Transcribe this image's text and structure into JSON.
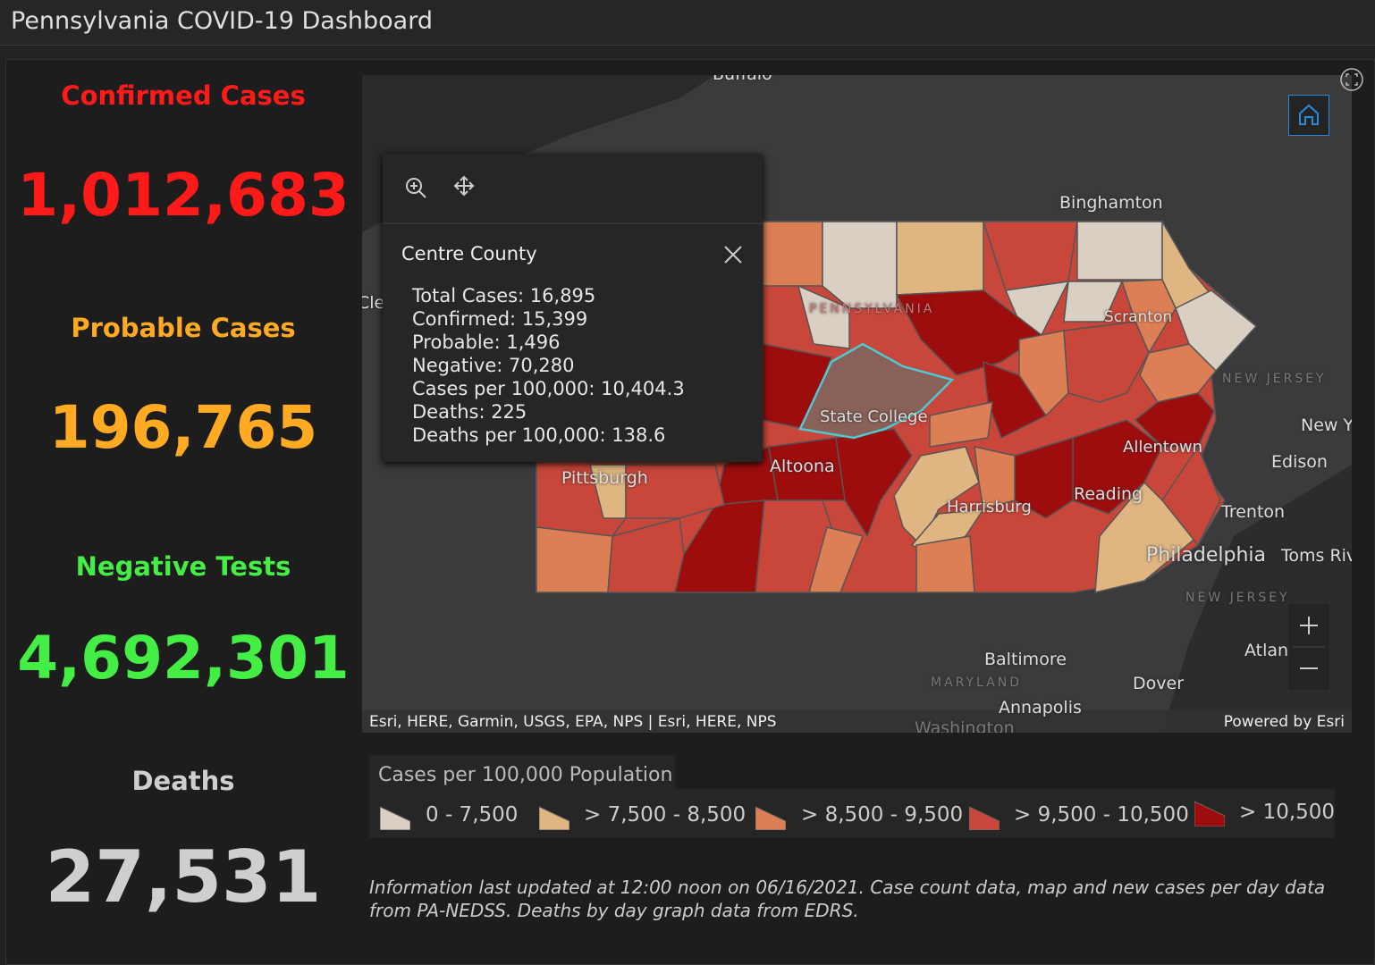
{
  "header": {
    "title": "Pennsylvania COVID-19 Dashboard"
  },
  "stats": [
    {
      "label": "Confirmed Cases",
      "value": "1,012,683"
    },
    {
      "label": "Probable Cases",
      "value": "196,765"
    },
    {
      "label": "Negative Tests",
      "value": "4,692,301"
    },
    {
      "label": "Deaths",
      "value": "27,531"
    }
  ],
  "map": {
    "labels": [
      "Buffalo",
      "Binghamton",
      "Cle",
      "Scranton",
      "PENNSYLVANIA",
      "NEW JERSEY",
      "New Y",
      "Edison",
      "State College",
      "Allentown",
      "Altoona",
      "Pittsburgh",
      "Reading",
      "Harrisburg",
      "Trenton",
      "Philadelphia",
      "Toms Riv",
      "NEW JERSEY",
      "Atlan",
      "Baltimore",
      "MARYLAND",
      "Dover",
      "Annapolis",
      "Washington"
    ],
    "attribution": "Esri, HERE, Garmin, USGS, EPA, NPS | Esri, HERE, NPS",
    "powered_by": "Powered by Esri"
  },
  "popup": {
    "title": "Centre County",
    "lines": [
      "Total Cases: 16,895",
      "Confirmed: 15,399",
      "Probable: 1,496",
      "Negative: 70,280",
      "Cases per 100,000: 10,404.3",
      "Deaths: 225",
      "Deaths per 100,000: 138.6"
    ]
  },
  "legend": {
    "title": "Cases per 100,000 Population",
    "items": [
      "0 - 7,500",
      "> 7,500 - 8,500",
      "> 8,500 - 9,500",
      "> 9,500 - 10,500",
      "> 10,500"
    ]
  },
  "footnote": "Information last updated at 12:00 noon on 06/16/2021. Case count data, map and new cases per day data from PA-NEDSS.  Deaths by day graph data from EDRS."
}
